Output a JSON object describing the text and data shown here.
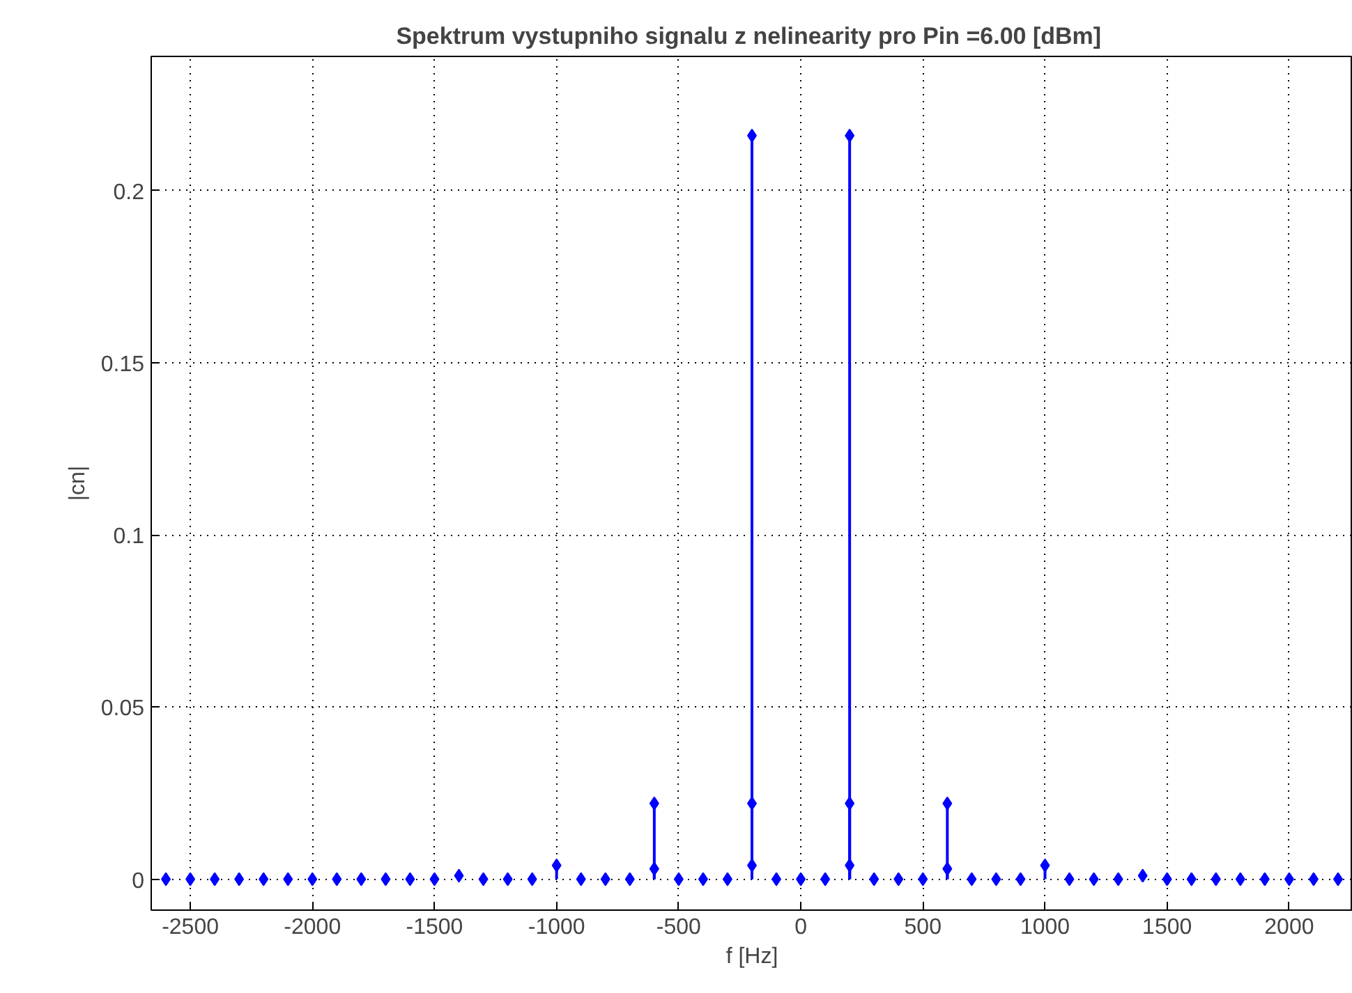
{
  "chart_data": {
    "type": "lollipop",
    "title": "Spektrum vystupniho signalu z nelinearity pro Pin =6.00  [dBm]",
    "xlabel": "f [Hz]",
    "ylabel": "|cn|",
    "x": [
      -2600,
      -2500,
      -2400,
      -2300,
      -2200,
      -2100,
      -2000,
      -1900,
      -1800,
      -1700,
      -1600,
      -1500,
      -1400,
      -1300,
      -1200,
      -1100,
      -1000,
      -900,
      -800,
      -700,
      -600,
      -600,
      -500,
      -400,
      -300,
      -200,
      -200,
      -200,
      -100,
      0,
      100,
      200,
      200,
      200,
      300,
      400,
      500,
      600,
      600,
      700,
      800,
      900,
      1000,
      1100,
      1200,
      1300,
      1400,
      1500,
      1600,
      1700,
      1800,
      1900,
      2000,
      2100,
      2200
    ],
    "values": [
      0,
      0,
      0,
      0,
      0,
      0,
      0,
      0,
      0,
      0,
      0,
      0,
      0.001,
      0,
      0,
      0,
      0.004,
      0,
      0,
      0,
      0.022,
      0.003,
      0,
      0,
      0,
      0.216,
      0.022,
      0.004,
      0,
      0,
      0,
      0.216,
      0.022,
      0.004,
      0,
      0,
      0,
      0.022,
      0.003,
      0,
      0,
      0,
      0.004,
      0,
      0,
      0,
      0.001,
      0,
      0,
      0,
      0,
      0,
      0,
      0,
      0
    ],
    "color": "#0000ff",
    "marker": "diamond",
    "xlim": [
      -2660,
      2260
    ],
    "ylim": [
      -0.009,
      0.239
    ],
    "xticks": [
      -2500,
      -2000,
      -1500,
      -1000,
      -500,
      0,
      500,
      1000,
      1500,
      2000
    ],
    "yticks": [
      0,
      0.05,
      0.1,
      0.15,
      0.2
    ],
    "grid": true
  }
}
